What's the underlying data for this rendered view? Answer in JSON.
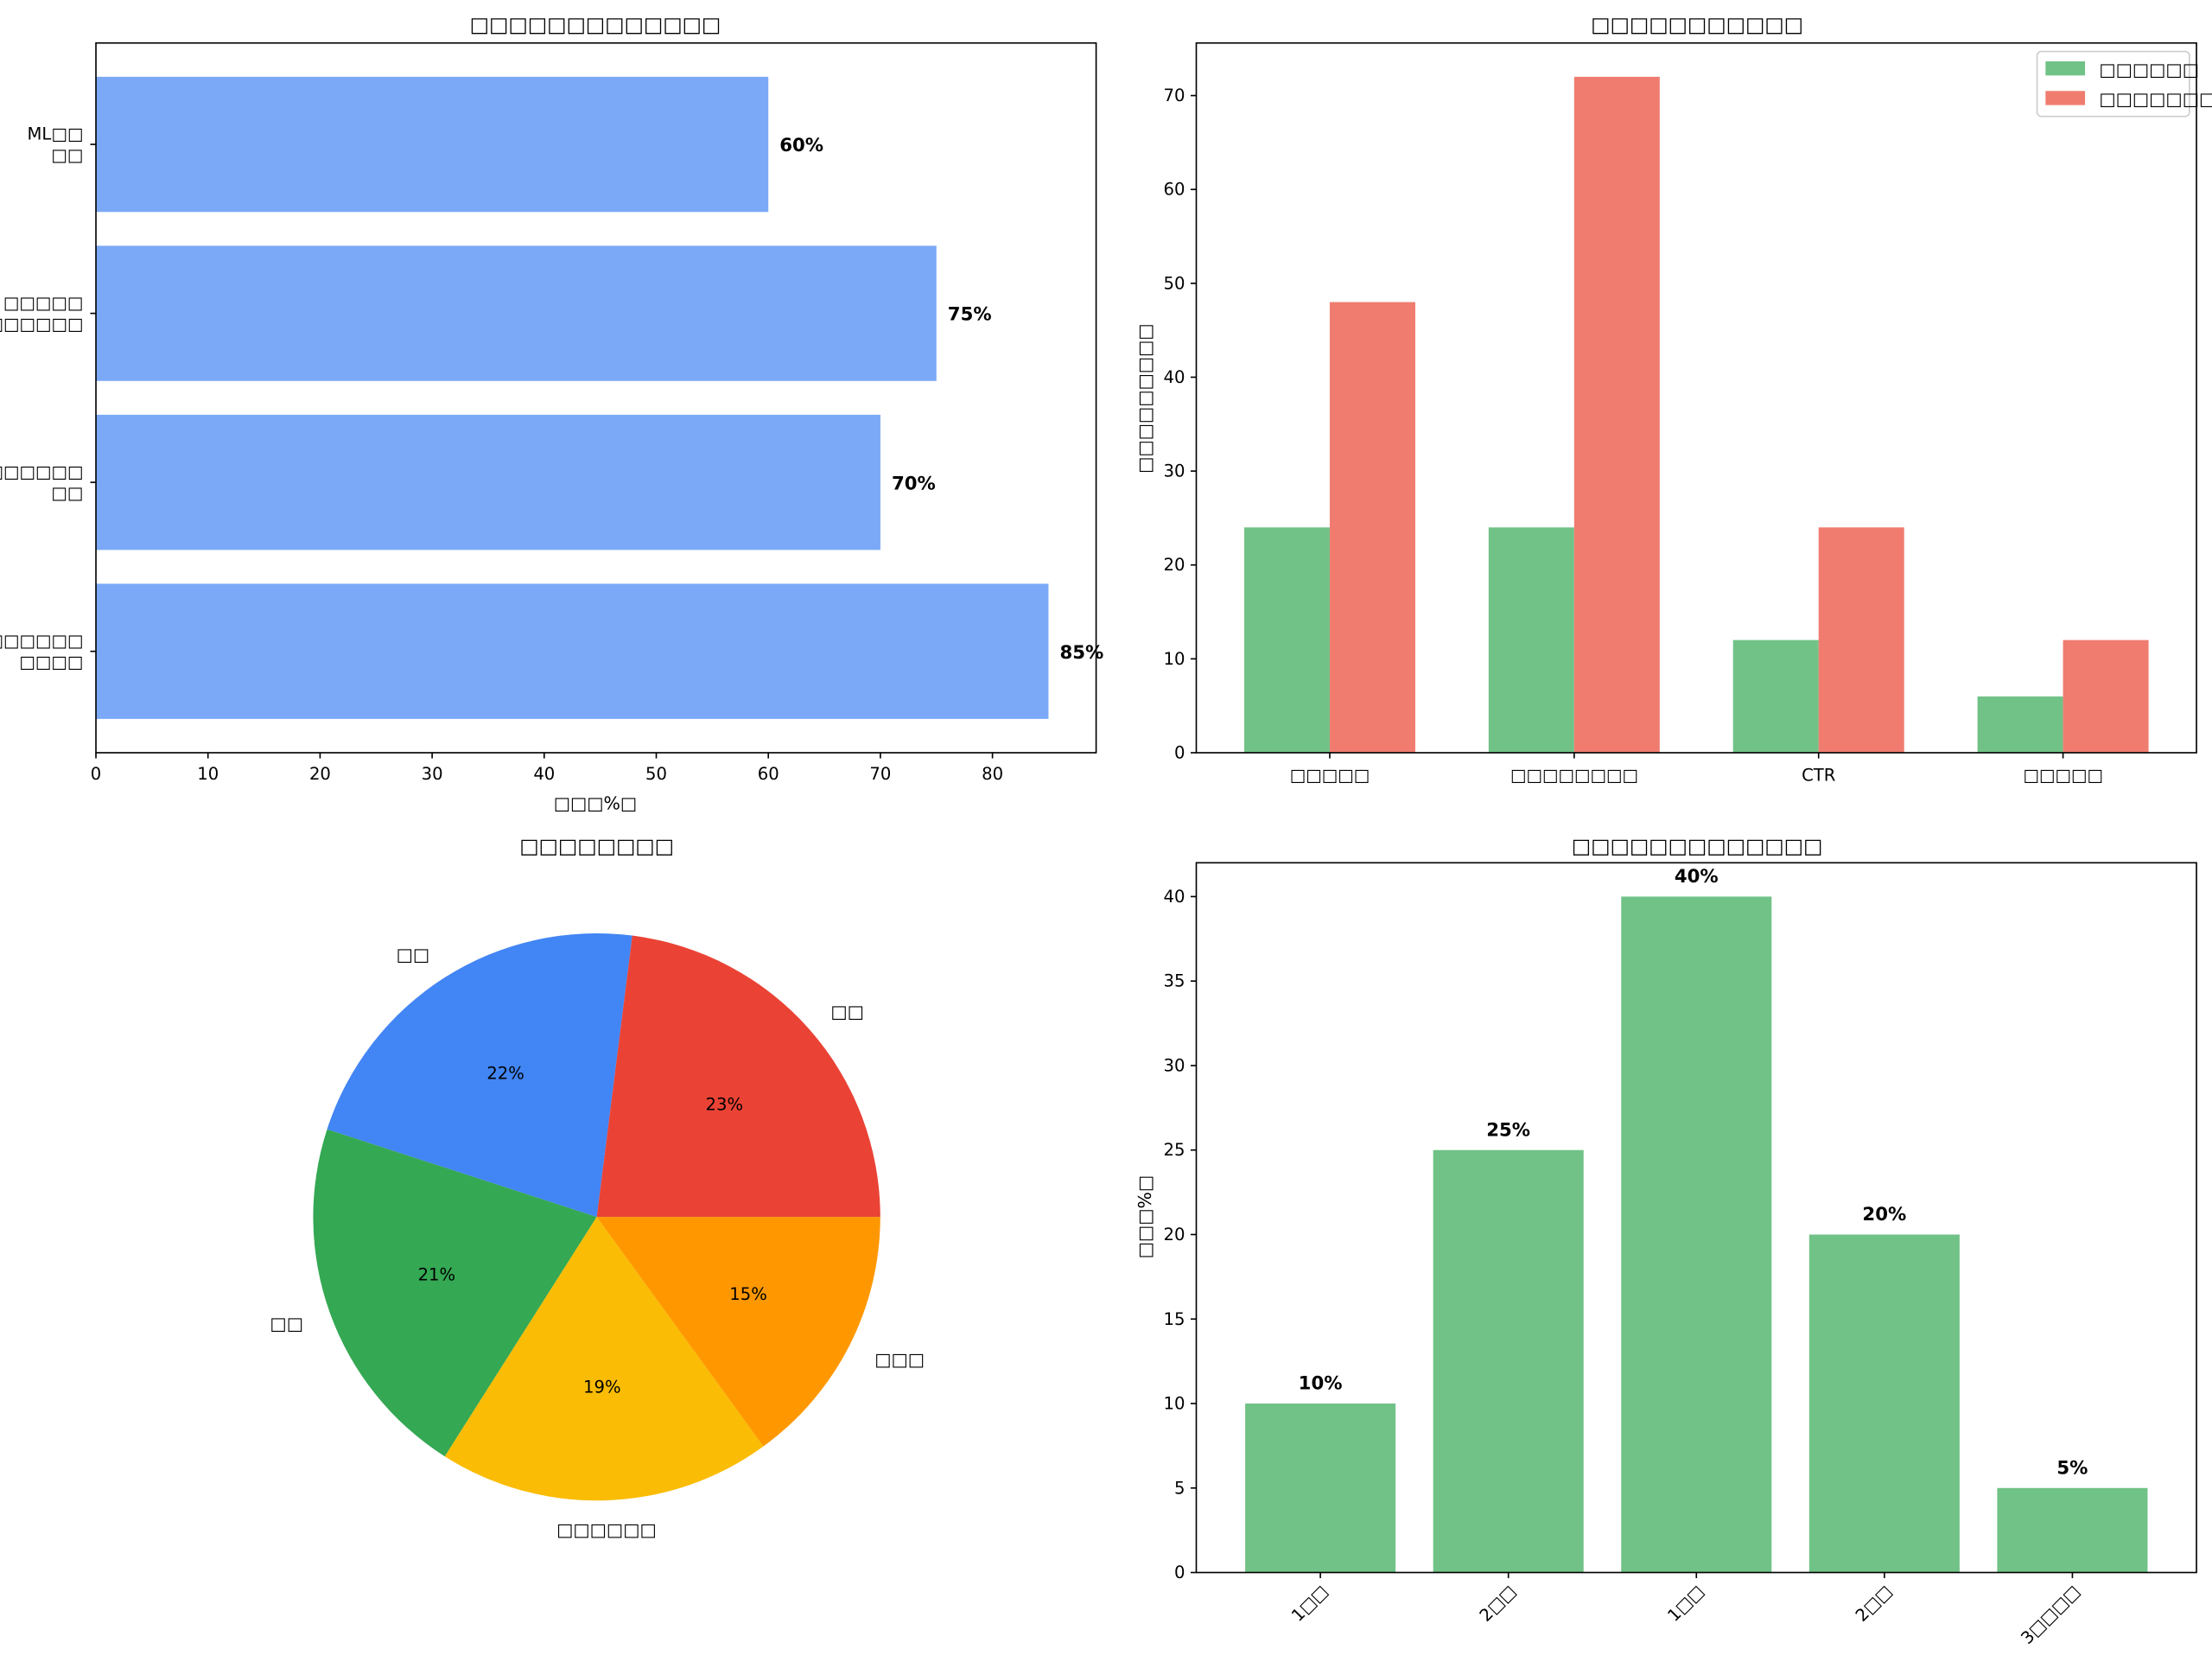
{
  "chart_data": [
    {
      "type": "bar",
      "orientation": "horizontal",
      "title": "□□□□□□□□□□□□□",
      "xlabel": "□□□%□",
      "ylabel": "",
      "categories": [
        "□□□□□□\n□□□□",
        "□□□□□□\n□□",
        "□□□□□\n□□□□□□",
        "ML□□\n□□"
      ],
      "values": [
        85,
        70,
        75,
        60
      ],
      "value_labels": [
        "85%",
        "70%",
        "75%",
        "60%"
      ],
      "xlim": [
        0,
        89.25
      ],
      "xticks": [
        0,
        10,
        20,
        30,
        40,
        50,
        60,
        70,
        80
      ],
      "color": "#7BA9F7"
    },
    {
      "type": "bar",
      "title": "□□□□□□□□□□□",
      "ylabel": "□□□□□□□□□",
      "categories": [
        "□□□□□",
        "□□□□□□□□",
        "CTR",
        "□□□□□"
      ],
      "series": [
        {
          "name": "□□□□□□",
          "values": [
            24,
            24,
            12,
            6
          ],
          "color": "#71C287"
        },
        {
          "name": "□□□□□□□",
          "values": [
            48,
            72,
            24,
            12
          ],
          "color": "#F07C70"
        }
      ],
      "ylim": [
        0,
        75.6
      ],
      "yticks": [
        0,
        10,
        20,
        30,
        40,
        50,
        60,
        70
      ],
      "legend": "top-right"
    },
    {
      "type": "pie",
      "title": "□□□□□□□□",
      "labels": [
        "□□",
        "□□",
        "□□",
        "□□□□□□",
        "□□□"
      ],
      "values": [
        23,
        22,
        21,
        19,
        15
      ],
      "pct_labels": [
        "23%",
        "22%",
        "21%",
        "19%",
        "15%"
      ],
      "colors": [
        "#EA4335",
        "#4285F4",
        "#34A853",
        "#FABC05",
        "#FF9800"
      ]
    },
    {
      "type": "bar",
      "title": "□□□□□□□□□□□□□",
      "ylabel": "□□□%□",
      "categories": [
        "1□□",
        "2□□",
        "1□□",
        "2□□",
        "3□□□□"
      ],
      "values": [
        10,
        25,
        40,
        20,
        5
      ],
      "value_labels": [
        "10%",
        "25%",
        "40%",
        "20%",
        "5%"
      ],
      "ylim": [
        0,
        42
      ],
      "yticks": [
        0,
        5,
        10,
        15,
        20,
        25,
        30,
        35,
        40
      ],
      "color": "#71C287"
    }
  ]
}
